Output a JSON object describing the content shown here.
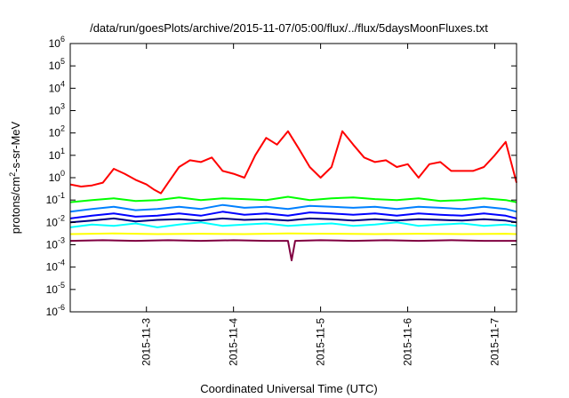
{
  "chart_data": {
    "type": "line",
    "title": "/data/run/goesPlots/archive/2015-11-07/05:00/flux/../flux/5daysMoonFluxes.txt",
    "xlabel": "Coordinated Universal Time (UTC)",
    "ylabel": {
      "prefix": "protons/cm",
      "sup": "2",
      "suffix": "-s-sr-MeV"
    },
    "yscale": "log",
    "ylim": [
      1e-06,
      1000000.0
    ],
    "xlim": [
      "2015-11-02T03:00",
      "2015-11-07T06:00"
    ],
    "grid": false,
    "y_ticks": [
      {
        "base": "10",
        "exp": "-6",
        "value": 1e-06
      },
      {
        "base": "10",
        "exp": "-5",
        "value": 1e-05
      },
      {
        "base": "10",
        "exp": "-4",
        "value": 0.0001
      },
      {
        "base": "10",
        "exp": "-3",
        "value": 0.001
      },
      {
        "base": "10",
        "exp": "-2",
        "value": 0.01
      },
      {
        "base": "10",
        "exp": "-1",
        "value": 0.1
      },
      {
        "base": "10",
        "exp": "0",
        "value": 1
      },
      {
        "base": "10",
        "exp": "1",
        "value": 10
      },
      {
        "base": "10",
        "exp": "2",
        "value": 100
      },
      {
        "base": "10",
        "exp": "3",
        "value": 1000
      },
      {
        "base": "10",
        "exp": "4",
        "value": 10000
      },
      {
        "base": "10",
        "exp": "5",
        "value": 100000
      },
      {
        "base": "10",
        "exp": "6",
        "value": 1000000
      }
    ],
    "x_ticks": [
      {
        "label": "2015-11-3",
        "value": "2015-11-03T00:00"
      },
      {
        "label": "2015-11-4",
        "value": "2015-11-04T00:00"
      },
      {
        "label": "2015-11-5",
        "value": "2015-11-05T00:00"
      },
      {
        "label": "2015-11-6",
        "value": "2015-11-06T00:00"
      },
      {
        "label": "2015-11-7",
        "value": "2015-11-07T00:00"
      }
    ],
    "series": [
      {
        "color": "#ff0000",
        "x": [
          "2015-11-02T03:00",
          "2015-11-02T06:00",
          "2015-11-02T09:00",
          "2015-11-02T12:00",
          "2015-11-02T15:00",
          "2015-11-02T18:00",
          "2015-11-02T21:00",
          "2015-11-03T00:00",
          "2015-11-03T02:00",
          "2015-11-03T04:00",
          "2015-11-03T06:00",
          "2015-11-03T09:00",
          "2015-11-03T12:00",
          "2015-11-03T15:00",
          "2015-11-03T18:00",
          "2015-11-03T21:00",
          "2015-11-04T00:00",
          "2015-11-04T03:00",
          "2015-11-04T06:00",
          "2015-11-04T09:00",
          "2015-11-04T12:00",
          "2015-11-04T15:00",
          "2015-11-04T18:00",
          "2015-11-04T21:00",
          "2015-11-05T00:00",
          "2015-11-05T03:00",
          "2015-11-05T06:00",
          "2015-11-05T09:00",
          "2015-11-05T12:00",
          "2015-11-05T15:00",
          "2015-11-05T18:00",
          "2015-11-05T21:00",
          "2015-11-06T00:00",
          "2015-11-06T03:00",
          "2015-11-06T06:00",
          "2015-11-06T09:00",
          "2015-11-06T12:00",
          "2015-11-06T15:00",
          "2015-11-06T18:00",
          "2015-11-06T21:00",
          "2015-11-07T00:00",
          "2015-11-07T03:00",
          "2015-11-07T06:00"
        ],
        "values": [
          0.5,
          0.4,
          0.45,
          0.6,
          2.5,
          1.5,
          0.8,
          0.5,
          0.3,
          0.2,
          0.6,
          3,
          6,
          5,
          8,
          2,
          1.5,
          1,
          10,
          60,
          30,
          120,
          20,
          3,
          1,
          3,
          120,
          30,
          8,
          5,
          6,
          3,
          4,
          1,
          4,
          5,
          2,
          2,
          2,
          3,
          10,
          40,
          0.6
        ]
      },
      {
        "color": "#00ff00",
        "x": [
          "2015-11-02T03:00",
          "2015-11-02T09:00",
          "2015-11-02T15:00",
          "2015-11-02T21:00",
          "2015-11-03T03:00",
          "2015-11-03T09:00",
          "2015-11-03T15:00",
          "2015-11-03T21:00",
          "2015-11-04T03:00",
          "2015-11-04T09:00",
          "2015-11-04T15:00",
          "2015-11-04T21:00",
          "2015-11-05T03:00",
          "2015-11-05T09:00",
          "2015-11-05T15:00",
          "2015-11-05T21:00",
          "2015-11-06T03:00",
          "2015-11-06T09:00",
          "2015-11-06T15:00",
          "2015-11-06T21:00",
          "2015-11-07T03:00",
          "2015-11-07T06:00"
        ],
        "values": [
          0.08,
          0.1,
          0.12,
          0.09,
          0.1,
          0.13,
          0.1,
          0.12,
          0.11,
          0.1,
          0.14,
          0.1,
          0.12,
          0.13,
          0.11,
          0.1,
          0.12,
          0.09,
          0.1,
          0.12,
          0.1,
          0.08
        ]
      },
      {
        "color": "#00ffff",
        "x": [
          "2015-11-02T03:00",
          "2015-11-02T09:00",
          "2015-11-02T15:00",
          "2015-11-02T21:00",
          "2015-11-03T03:00",
          "2015-11-03T09:00",
          "2015-11-03T15:00",
          "2015-11-03T21:00",
          "2015-11-04T03:00",
          "2015-11-04T09:00",
          "2015-11-04T15:00",
          "2015-11-04T21:00",
          "2015-11-05T03:00",
          "2015-11-05T09:00",
          "2015-11-05T15:00",
          "2015-11-05T21:00",
          "2015-11-06T03:00",
          "2015-11-06T09:00",
          "2015-11-06T15:00",
          "2015-11-06T21:00",
          "2015-11-07T03:00",
          "2015-11-07T06:00"
        ],
        "values": [
          0.006,
          0.008,
          0.007,
          0.009,
          0.006,
          0.008,
          0.01,
          0.007,
          0.008,
          0.009,
          0.007,
          0.008,
          0.009,
          0.007,
          0.008,
          0.01,
          0.007,
          0.008,
          0.009,
          0.007,
          0.008,
          0.007
        ]
      },
      {
        "color": "#0080ff",
        "x": [
          "2015-11-02T03:00",
          "2015-11-02T09:00",
          "2015-11-02T15:00",
          "2015-11-02T21:00",
          "2015-11-03T03:00",
          "2015-11-03T09:00",
          "2015-11-03T15:00",
          "2015-11-03T21:00",
          "2015-11-04T03:00",
          "2015-11-04T09:00",
          "2015-11-04T15:00",
          "2015-11-04T21:00",
          "2015-11-05T03:00",
          "2015-11-05T09:00",
          "2015-11-05T15:00",
          "2015-11-05T21:00",
          "2015-11-06T03:00",
          "2015-11-06T09:00",
          "2015-11-06T15:00",
          "2015-11-06T21:00",
          "2015-11-07T03:00",
          "2015-11-07T06:00"
        ],
        "values": [
          0.03,
          0.04,
          0.05,
          0.035,
          0.04,
          0.05,
          0.04,
          0.06,
          0.045,
          0.05,
          0.04,
          0.055,
          0.05,
          0.045,
          0.05,
          0.04,
          0.05,
          0.045,
          0.04,
          0.05,
          0.04,
          0.03
        ]
      },
      {
        "color": "#0000ff",
        "x": [
          "2015-11-02T03:00",
          "2015-11-02T09:00",
          "2015-11-02T15:00",
          "2015-11-02T21:00",
          "2015-11-03T03:00",
          "2015-11-03T09:00",
          "2015-11-03T15:00",
          "2015-11-03T21:00",
          "2015-11-04T03:00",
          "2015-11-04T09:00",
          "2015-11-04T15:00",
          "2015-11-04T21:00",
          "2015-11-05T03:00",
          "2015-11-05T09:00",
          "2015-11-05T15:00",
          "2015-11-05T21:00",
          "2015-11-06T03:00",
          "2015-11-06T09:00",
          "2015-11-06T15:00",
          "2015-11-06T21:00",
          "2015-11-07T03:00",
          "2015-11-07T06:00"
        ],
        "values": [
          0.015,
          0.02,
          0.025,
          0.018,
          0.02,
          0.025,
          0.02,
          0.03,
          0.022,
          0.025,
          0.02,
          0.028,
          0.025,
          0.022,
          0.025,
          0.02,
          0.025,
          0.022,
          0.02,
          0.025,
          0.02,
          0.015
        ]
      },
      {
        "color": "#000080",
        "x": [
          "2015-11-02T03:00",
          "2015-11-02T09:00",
          "2015-11-02T15:00",
          "2015-11-02T21:00",
          "2015-11-03T03:00",
          "2015-11-03T09:00",
          "2015-11-03T15:00",
          "2015-11-03T21:00",
          "2015-11-04T03:00",
          "2015-11-04T09:00",
          "2015-11-04T15:00",
          "2015-11-04T21:00",
          "2015-11-05T03:00",
          "2015-11-05T09:00",
          "2015-11-05T15:00",
          "2015-11-05T21:00",
          "2015-11-06T03:00",
          "2015-11-06T09:00",
          "2015-11-06T15:00",
          "2015-11-06T21:00",
          "2015-11-07T03:00",
          "2015-11-07T06:00"
        ],
        "values": [
          0.01,
          0.012,
          0.015,
          0.011,
          0.013,
          0.014,
          0.012,
          0.015,
          0.013,
          0.014,
          0.012,
          0.015,
          0.014,
          0.012,
          0.014,
          0.012,
          0.014,
          0.013,
          0.012,
          0.014,
          0.012,
          0.01
        ]
      },
      {
        "color": "#ffff00",
        "x": [
          "2015-11-02T03:00",
          "2015-11-02T15:00",
          "2015-11-03T03:00",
          "2015-11-03T15:00",
          "2015-11-04T03:00",
          "2015-11-04T15:00",
          "2015-11-05T03:00",
          "2015-11-05T15:00",
          "2015-11-06T03:00",
          "2015-11-06T15:00",
          "2015-11-07T03:00",
          "2015-11-07T06:00"
        ],
        "values": [
          0.003,
          0.0032,
          0.003,
          0.0031,
          0.003,
          0.0032,
          0.0031,
          0.003,
          0.0031,
          0.003,
          0.0031,
          0.003
        ]
      },
      {
        "color": "#800040",
        "x": [
          "2015-11-02T03:00",
          "2015-11-02T12:00",
          "2015-11-02T21:00",
          "2015-11-03T06:00",
          "2015-11-03T15:00",
          "2015-11-04T00:00",
          "2015-11-04T09:00",
          "2015-11-04T15:00",
          "2015-11-04T16:00",
          "2015-11-04T17:00",
          "2015-11-05T00:00",
          "2015-11-05T09:00",
          "2015-11-05T18:00",
          "2015-11-06T03:00",
          "2015-11-06T12:00",
          "2015-11-06T21:00",
          "2015-11-07T06:00"
        ],
        "values": [
          0.0015,
          0.0016,
          0.0015,
          0.0016,
          0.0015,
          0.0016,
          0.0015,
          0.0015,
          0.0002,
          0.0015,
          0.0016,
          0.0015,
          0.0016,
          0.0015,
          0.0016,
          0.0015,
          0.0015
        ]
      }
    ]
  }
}
